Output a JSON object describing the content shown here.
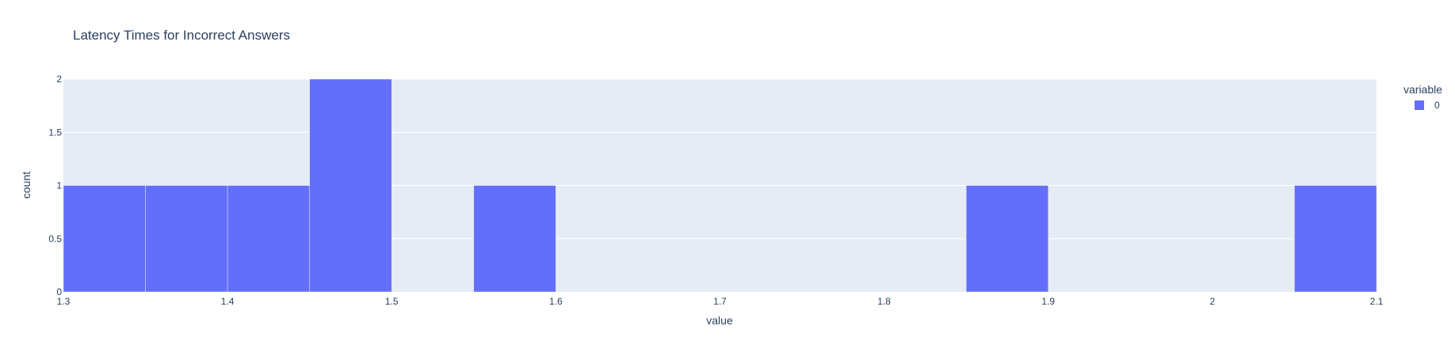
{
  "chart_data": {
    "type": "bar",
    "title": "Latency Times for Incorrect Answers",
    "xlabel": "value",
    "ylabel": "count",
    "xlim": [
      1.3,
      2.1
    ],
    "ylim": [
      0,
      2
    ],
    "bin_width": 0.05,
    "bins": [
      {
        "start": 1.3,
        "end": 1.35,
        "count": 1
      },
      {
        "start": 1.35,
        "end": 1.4,
        "count": 1
      },
      {
        "start": 1.4,
        "end": 1.45,
        "count": 1
      },
      {
        "start": 1.45,
        "end": 1.5,
        "count": 2
      },
      {
        "start": 1.5,
        "end": 1.55,
        "count": 0
      },
      {
        "start": 1.55,
        "end": 1.6,
        "count": 1
      },
      {
        "start": 1.6,
        "end": 1.65,
        "count": 0
      },
      {
        "start": 1.65,
        "end": 1.7,
        "count": 0
      },
      {
        "start": 1.7,
        "end": 1.75,
        "count": 0
      },
      {
        "start": 1.75,
        "end": 1.8,
        "count": 0
      },
      {
        "start": 1.8,
        "end": 1.85,
        "count": 0
      },
      {
        "start": 1.85,
        "end": 1.9,
        "count": 1
      },
      {
        "start": 1.9,
        "end": 1.95,
        "count": 0
      },
      {
        "start": 1.95,
        "end": 2.0,
        "count": 0
      },
      {
        "start": 2.0,
        "end": 2.05,
        "count": 0
      },
      {
        "start": 2.05,
        "end": 2.1,
        "count": 1
      }
    ],
    "x_ticks": [
      "1.3",
      "1.4",
      "1.5",
      "1.6",
      "1.7",
      "1.8",
      "1.9",
      "2",
      "2.1"
    ],
    "y_ticks": [
      "0",
      "0.5",
      "1",
      "1.5",
      "2"
    ],
    "legend": {
      "title": "variable",
      "entries": [
        {
          "name": "0",
          "color": "#636efa"
        }
      ],
      "placement": "right"
    },
    "bar_color": "#636efa",
    "plot_bgcolor": "#e5ecf6",
    "grid": true
  }
}
